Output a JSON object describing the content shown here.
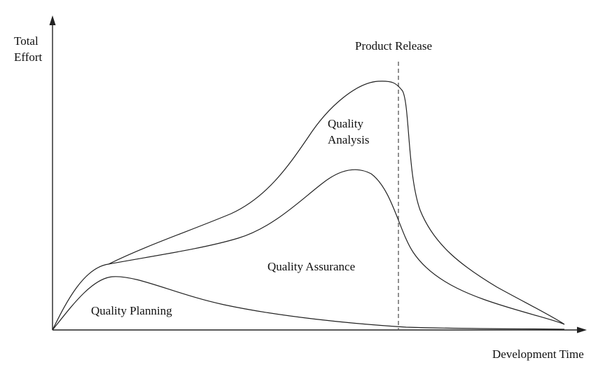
{
  "axes": {
    "y_label_line1": "Total",
    "y_label_line2": "Effort",
    "x_label": "Development Time"
  },
  "milestone": {
    "label": "Product Release"
  },
  "regions": {
    "planning": "Quality Planning",
    "assurance": "Quality Assurance",
    "analysis_line1": "Quality",
    "analysis_line2": "Analysis"
  },
  "colors": {
    "line": "#222222",
    "dashed_line": "#555555",
    "background": "#ffffff"
  }
}
